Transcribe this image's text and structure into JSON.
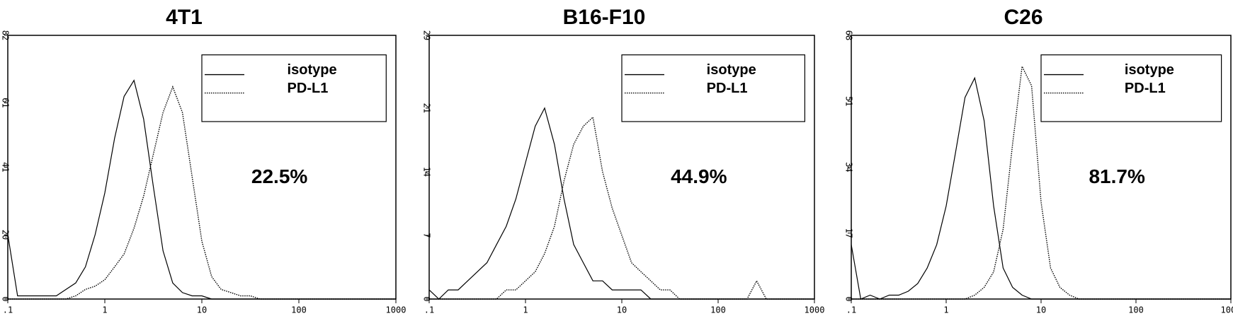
{
  "chart_data": [
    {
      "type": "line",
      "title": "4T1",
      "annotation": "22.5%",
      "log_x": true,
      "x": [
        0.1,
        0.126,
        0.158,
        0.2,
        0.251,
        0.316,
        0.398,
        0.501,
        0.631,
        0.794,
        1,
        1.26,
        1.58,
        2,
        2.51,
        3.16,
        3.98,
        5.01,
        6.31,
        7.94,
        10,
        12.6,
        15.8,
        20,
        25.1,
        31.6,
        39.8,
        50.1,
        63.1,
        79.4,
        100,
        126,
        158,
        200,
        251,
        316,
        398,
        501,
        631,
        794,
        1000
      ],
      "xlim": [
        0.1,
        1000
      ],
      "xticks": [
        {
          "value": 0.1,
          "label": ".1"
        },
        1,
        10,
        100,
        1000
      ],
      "ylim": [
        0,
        82
      ],
      "yticks": [
        0,
        20,
        41,
        61,
        82
      ],
      "series": [
        {
          "name": "isotype",
          "color": "#000000",
          "dash": "solid",
          "values": [
            20,
            1,
            1,
            1,
            1,
            1,
            3,
            5,
            10,
            20,
            33,
            50,
            63,
            68,
            56,
            35,
            15,
            5,
            2,
            1,
            1,
            0,
            0,
            0,
            0,
            0,
            0,
            0,
            0,
            0,
            0,
            0,
            0,
            0,
            0,
            0,
            0,
            0,
            0,
            0,
            0
          ]
        },
        {
          "name": "PD-L1",
          "color": "#000000",
          "dash": "dotted",
          "values": [
            0,
            0,
            0,
            0,
            0,
            0,
            0,
            1,
            3,
            4,
            6,
            10,
            14,
            22,
            32,
            45,
            58,
            66,
            58,
            38,
            18,
            7,
            3,
            2,
            1,
            1,
            0,
            0,
            0,
            0,
            0,
            0,
            0,
            0,
            0,
            0,
            0,
            0,
            0,
            0,
            0
          ]
        }
      ]
    },
    {
      "type": "line",
      "title": "B16-F10",
      "annotation": "44.9%",
      "log_x": true,
      "x": [
        0.1,
        0.126,
        0.158,
        0.2,
        0.251,
        0.316,
        0.398,
        0.501,
        0.631,
        0.794,
        1,
        1.26,
        1.58,
        2,
        2.51,
        3.16,
        3.98,
        5.01,
        6.31,
        7.94,
        10,
        12.6,
        15.8,
        20,
        25.1,
        31.6,
        39.8,
        50.1,
        63.1,
        79.4,
        100,
        126,
        158,
        200,
        251,
        316,
        398,
        501,
        631,
        794,
        1000
      ],
      "xlim": [
        0.1,
        1000
      ],
      "xticks": [
        {
          "value": 0.1,
          "label": ".1"
        },
        1,
        10,
        100,
        1000
      ],
      "ylim": [
        0,
        29
      ],
      "yticks": [
        0,
        7,
        14,
        21,
        29
      ],
      "series": [
        {
          "name": "isotype",
          "color": "#000000",
          "dash": "solid",
          "values": [
            1,
            0,
            1,
            1,
            2,
            3,
            4,
            6,
            8,
            11,
            15,
            19,
            21,
            17,
            11,
            6,
            4,
            2,
            2,
            1,
            1,
            1,
            1,
            0,
            0,
            0,
            0,
            0,
            0,
            0,
            0,
            0,
            0,
            0,
            0,
            0,
            0,
            0,
            0,
            0,
            0
          ]
        },
        {
          "name": "PD-L1",
          "color": "#000000",
          "dash": "dotted",
          "values": [
            0,
            0,
            0,
            0,
            0,
            0,
            0,
            0,
            1,
            1,
            2,
            3,
            5,
            8,
            13,
            17,
            19,
            20,
            14,
            10,
            7,
            4,
            3,
            2,
            1,
            1,
            0,
            0,
            0,
            0,
            0,
            0,
            0,
            0,
            2,
            0,
            0,
            0,
            0,
            0,
            0
          ]
        }
      ]
    },
    {
      "type": "line",
      "title": "C26",
      "annotation": "81.7%",
      "log_x": true,
      "x": [
        0.1,
        0.126,
        0.158,
        0.2,
        0.251,
        0.316,
        0.398,
        0.501,
        0.631,
        0.794,
        1,
        1.26,
        1.58,
        2,
        2.51,
        3.16,
        3.98,
        5.01,
        6.31,
        7.94,
        10,
        12.6,
        15.8,
        20,
        25.1,
        31.6,
        39.8,
        50.1,
        63.1,
        79.4,
        100,
        126,
        158,
        200,
        251,
        316,
        398,
        501,
        631,
        794,
        1000
      ],
      "xlim": [
        0.1,
        1000
      ],
      "xticks": [
        {
          "value": 0.1,
          "label": ".1"
        },
        1,
        10,
        100,
        1000
      ],
      "ylim": [
        0,
        68
      ],
      "yticks": [
        0,
        17,
        34,
        51,
        68
      ],
      "series": [
        {
          "name": "isotype",
          "color": "#000000",
          "dash": "solid",
          "values": [
            14,
            0,
            1,
            0,
            1,
            1,
            2,
            4,
            8,
            14,
            24,
            38,
            52,
            57,
            46,
            24,
            8,
            3,
            1,
            0,
            0,
            0,
            0,
            0,
            0,
            0,
            0,
            0,
            0,
            0,
            0,
            0,
            0,
            0,
            0,
            0,
            0,
            0,
            0,
            0,
            0
          ]
        },
        {
          "name": "PD-L1",
          "color": "#000000",
          "dash": "dotted",
          "values": [
            0,
            0,
            0,
            0,
            0,
            0,
            0,
            0,
            0,
            0,
            0,
            0,
            0,
            1,
            3,
            7,
            18,
            40,
            60,
            55,
            25,
            8,
            3,
            1,
            0,
            0,
            0,
            0,
            0,
            0,
            0,
            0,
            0,
            0,
            0,
            0,
            0,
            0,
            0,
            0,
            0
          ]
        }
      ]
    }
  ]
}
